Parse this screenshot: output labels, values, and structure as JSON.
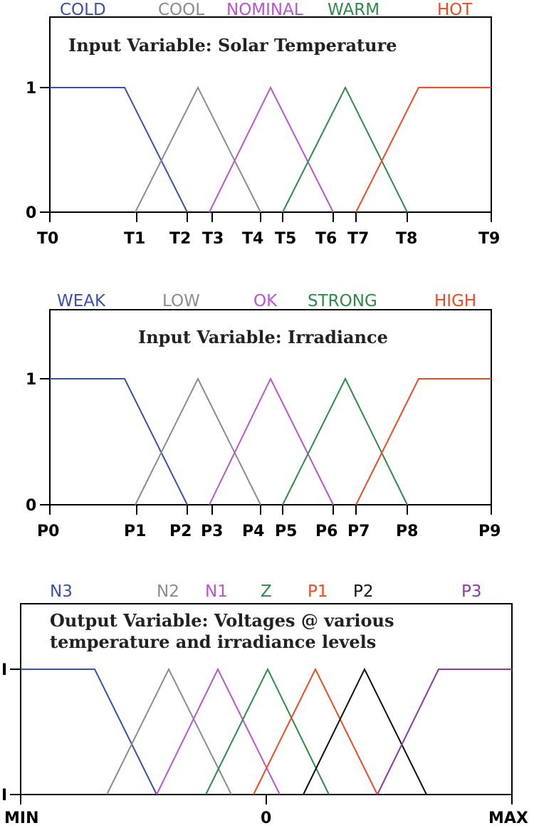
{
  "chart_data": [
    {
      "type": "line",
      "title": "Input Variable: Solar Temperature",
      "y_ticks": [
        "0",
        "1"
      ],
      "x_ticks": [
        "T0",
        "T1",
        "T2",
        "T3",
        "T4",
        "T5",
        "T6",
        "T7",
        "T8",
        "T9"
      ],
      "series": [
        {
          "name": "COLD",
          "color": "#3a4fb0",
          "x": [
            0,
            1,
            2
          ],
          "y": [
            1,
            1,
            0
          ]
        },
        {
          "name": "COOL",
          "color": "#8c8c8c",
          "x": [
            1.16,
            2.16,
            3.16
          ],
          "y": [
            0,
            1,
            0
          ]
        },
        {
          "name": "NOMINAL",
          "color": "#bb55cc",
          "x": [
            2.3,
            3.3,
            4.3
          ],
          "y": [
            0,
            1,
            0
          ]
        },
        {
          "name": "WARM",
          "color": "#2e8b4a",
          "x": [
            3.34,
            4.34,
            5.34
          ],
          "y": [
            0,
            1,
            0
          ]
        },
        {
          "name": "HOT",
          "color": "#f04a22",
          "x": [
            4.26,
            5.1,
            6.06
          ],
          "y": [
            0,
            1,
            1
          ]
        }
      ]
    },
    {
      "type": "line",
      "title": "Input Variable: Irradiance",
      "y_ticks": [
        "0",
        "1"
      ],
      "x_ticks": [
        "P0",
        "P1",
        "P2",
        "P3",
        "P4",
        "P5",
        "P6",
        "P7",
        "P8",
        "P9"
      ],
      "series": [
        {
          "name": "WEAK",
          "color": "#3a4fb0",
          "x": [
            0,
            1,
            2
          ],
          "y": [
            1,
            1,
            0
          ]
        },
        {
          "name": "LOW",
          "color": "#8c8c8c",
          "x": [
            1.16,
            2.16,
            3.16
          ],
          "y": [
            0,
            1,
            0
          ]
        },
        {
          "name": "OK",
          "color": "#bb55cc",
          "x": [
            2.3,
            3.3,
            4.3
          ],
          "y": [
            0,
            1,
            0
          ]
        },
        {
          "name": "STRONG",
          "color": "#2e8b4a",
          "x": [
            3.34,
            4.34,
            5.34
          ],
          "y": [
            0,
            1,
            0
          ]
        },
        {
          "name": "HIGH",
          "color": "#f04a22",
          "x": [
            4.26,
            5.1,
            6.06
          ],
          "y": [
            0,
            1,
            1
          ]
        }
      ]
    },
    {
      "type": "line",
      "title": "Output Variable: Voltages @ various temperature and irradiance levels",
      "y_ticks": [
        "I",
        "I"
      ],
      "x_ticks": [
        "MIN",
        "0",
        "MAX"
      ],
      "series": [
        {
          "name": "N3",
          "color": "#3a4fb0"
        },
        {
          "name": "N2",
          "color": "#8c8c8c"
        },
        {
          "name": "N1",
          "color": "#bb55cc"
        },
        {
          "name": "Z",
          "color": "#2e8b4a"
        },
        {
          "name": "P1",
          "color": "#f04a22"
        },
        {
          "name": "P2",
          "color": "#111111"
        },
        {
          "name": "P3",
          "color": "#8a3ca0"
        }
      ]
    }
  ]
}
